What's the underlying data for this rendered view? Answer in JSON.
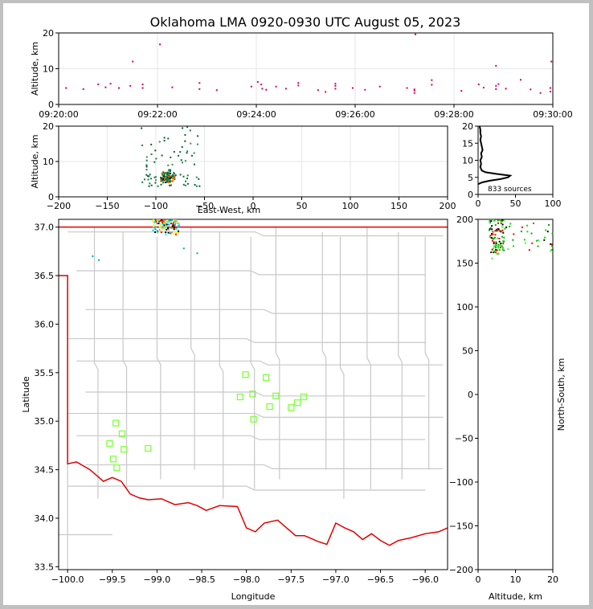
{
  "chart_data": [
    {
      "panel": "time-altitude",
      "type": "scatter",
      "title": "Oklahoma LMA 0920-0930 UTC August 05, 2023",
      "xlabel": "",
      "ylabel": "Altitude, km",
      "xlim_minutes": [
        0,
        10
      ],
      "ylim": [
        0,
        20
      ],
      "xtick_labels": [
        "09:20:00",
        "09:22:00",
        "09:24:00",
        "09:26:00",
        "09:28:00",
        "09:30:00"
      ],
      "yticks": [
        0,
        10,
        20
      ],
      "grid": true,
      "point_color": "#d0006f",
      "points": [
        {
          "t": 0.15,
          "alt": 4.6
        },
        {
          "t": 0.5,
          "alt": 4.3
        },
        {
          "t": 0.8,
          "alt": 5.6
        },
        {
          "t": 0.95,
          "alt": 4.8
        },
        {
          "t": 1.05,
          "alt": 5.8
        },
        {
          "t": 1.22,
          "alt": 4.6
        },
        {
          "t": 1.45,
          "alt": 5.2
        },
        {
          "t": 1.5,
          "alt": 12.0
        },
        {
          "t": 1.7,
          "alt": 4.6
        },
        {
          "t": 1.7,
          "alt": 5.6
        },
        {
          "t": 2.05,
          "alt": 16.8
        },
        {
          "t": 2.3,
          "alt": 4.8
        },
        {
          "t": 2.85,
          "alt": 4.3
        },
        {
          "t": 2.85,
          "alt": 6.0
        },
        {
          "t": 3.2,
          "alt": 4.0
        },
        {
          "t": 3.9,
          "alt": 5.0
        },
        {
          "t": 4.03,
          "alt": 6.3
        },
        {
          "t": 4.1,
          "alt": 5.6
        },
        {
          "t": 4.12,
          "alt": 4.4
        },
        {
          "t": 4.2,
          "alt": 4.1
        },
        {
          "t": 4.4,
          "alt": 5.0
        },
        {
          "t": 4.6,
          "alt": 4.4
        },
        {
          "t": 4.85,
          "alt": 5.3
        },
        {
          "t": 4.85,
          "alt": 6.0
        },
        {
          "t": 5.25,
          "alt": 4.0
        },
        {
          "t": 5.4,
          "alt": 3.5
        },
        {
          "t": 5.6,
          "alt": 4.4
        },
        {
          "t": 5.6,
          "alt": 5.2
        },
        {
          "t": 5.6,
          "alt": 5.8
        },
        {
          "t": 5.95,
          "alt": 4.6
        },
        {
          "t": 6.2,
          "alt": 4.1
        },
        {
          "t": 6.5,
          "alt": 5.0
        },
        {
          "t": 7.05,
          "alt": 4.6
        },
        {
          "t": 7.2,
          "alt": 3.9
        },
        {
          "t": 7.2,
          "alt": 3.2
        },
        {
          "t": 7.2,
          "alt": 4.2
        },
        {
          "t": 7.22,
          "alt": 19.6
        },
        {
          "t": 7.55,
          "alt": 5.5
        },
        {
          "t": 7.55,
          "alt": 6.8
        },
        {
          "t": 8.15,
          "alt": 3.8
        },
        {
          "t": 8.5,
          "alt": 5.6
        },
        {
          "t": 8.6,
          "alt": 4.7
        },
        {
          "t": 8.85,
          "alt": 10.8
        },
        {
          "t": 8.85,
          "alt": 4.3
        },
        {
          "t": 8.85,
          "alt": 5.2
        },
        {
          "t": 8.9,
          "alt": 5.7
        },
        {
          "t": 9.05,
          "alt": 4.4
        },
        {
          "t": 9.35,
          "alt": 6.9
        },
        {
          "t": 9.55,
          "alt": 4.2
        },
        {
          "t": 9.75,
          "alt": 3.2
        },
        {
          "t": 9.95,
          "alt": 3.6
        },
        {
          "t": 9.95,
          "alt": 4.6
        },
        {
          "t": 9.97,
          "alt": 12.0
        }
      ]
    },
    {
      "panel": "east-west-altitude",
      "type": "scatter",
      "xlabel": "East-West, km",
      "ylabel": "Altitude, km",
      "xlim": [
        -200,
        200
      ],
      "ylim": [
        0,
        20
      ],
      "xticks": [
        -200,
        -150,
        -100,
        -50,
        0,
        50,
        100,
        150,
        200
      ],
      "yticks": [
        0,
        10,
        20
      ],
      "grid": true,
      "cluster": {
        "x_range": [
          -115,
          -55
        ],
        "alt_range": [
          3,
          20
        ],
        "core_x": [
          -95,
          -80
        ],
        "core_alt": [
          4,
          7
        ]
      }
    },
    {
      "panel": "altitude-histogram",
      "type": "line",
      "xlim": [
        0,
        100
      ],
      "ylim": [
        0,
        20
      ],
      "xticks": [
        0,
        50,
        100
      ],
      "yticks": [
        0,
        5,
        10,
        15,
        20
      ],
      "annotation": "833 sources",
      "profile": [
        {
          "alt": 3.0,
          "count": 0
        },
        {
          "alt": 3.5,
          "count": 5
        },
        {
          "alt": 4.0,
          "count": 15
        },
        {
          "alt": 4.5,
          "count": 30
        },
        {
          "alt": 5.0,
          "count": 40
        },
        {
          "alt": 5.5,
          "count": 43
        },
        {
          "alt": 6.0,
          "count": 25
        },
        {
          "alt": 6.5,
          "count": 10
        },
        {
          "alt": 7.0,
          "count": 5
        },
        {
          "alt": 8.0,
          "count": 3
        },
        {
          "alt": 9.0,
          "count": 4
        },
        {
          "alt": 10.0,
          "count": 3
        },
        {
          "alt": 11.0,
          "count": 5
        },
        {
          "alt": 12.0,
          "count": 4
        },
        {
          "alt": 13.0,
          "count": 6
        },
        {
          "alt": 14.0,
          "count": 5
        },
        {
          "alt": 15.0,
          "count": 4
        },
        {
          "alt": 16.0,
          "count": 3
        },
        {
          "alt": 17.0,
          "count": 4
        },
        {
          "alt": 18.0,
          "count": 3
        },
        {
          "alt": 19.0,
          "count": 3
        },
        {
          "alt": 20.0,
          "count": 2
        }
      ]
    },
    {
      "panel": "plan-view-map",
      "type": "scatter",
      "xlabel": "Longitude",
      "ylabel": "Latitude",
      "xlim": [
        -100.1,
        -95.75
      ],
      "ylim": [
        33.47,
        37.08
      ],
      "xticks": [
        -100.0,
        -99.5,
        -99.0,
        -98.5,
        -98.0,
        -97.5,
        -97.0,
        -96.5,
        -96.0
      ],
      "yticks": [
        33.5,
        34.0,
        34.5,
        35.0,
        35.5,
        36.0,
        36.5,
        37.0
      ],
      "stations": [
        {
          "lon": -98.01,
          "lat": 35.48
        },
        {
          "lon": -97.78,
          "lat": 35.45
        },
        {
          "lon": -98.07,
          "lat": 35.25
        },
        {
          "lon": -97.93,
          "lat": 35.28
        },
        {
          "lon": -97.67,
          "lat": 35.26
        },
        {
          "lon": -97.36,
          "lat": 35.25
        },
        {
          "lon": -97.43,
          "lat": 35.19
        },
        {
          "lon": -97.74,
          "lat": 35.15
        },
        {
          "lon": -97.5,
          "lat": 35.14
        },
        {
          "lon": -97.92,
          "lat": 35.02
        },
        {
          "lon": -99.46,
          "lat": 34.98
        },
        {
          "lon": -99.39,
          "lat": 34.87
        },
        {
          "lon": -99.53,
          "lat": 34.77
        },
        {
          "lon": -99.37,
          "lat": 34.71
        },
        {
          "lon": -99.1,
          "lat": 34.72
        },
        {
          "lon": -99.49,
          "lat": 34.61
        },
        {
          "lon": -99.45,
          "lat": 34.52
        }
      ],
      "station_color": "#80ff40",
      "border_color": "#e00000",
      "county_color": "#c8c8c8",
      "source_cluster": {
        "lon_range": [
          -99.05,
          -98.75
        ],
        "lat_range": [
          36.9,
          37.08
        ]
      }
    },
    {
      "panel": "altitude-north-south",
      "type": "scatter",
      "xlabel": "Altitude, km",
      "ylabel": "North-South, km",
      "xlim": [
        0,
        20
      ],
      "ylim": [
        -200,
        200
      ],
      "xticks": [
        0,
        10,
        20
      ],
      "yticks": [
        -200,
        -150,
        -100,
        -50,
        0,
        50,
        100,
        150,
        200
      ]
    }
  ]
}
